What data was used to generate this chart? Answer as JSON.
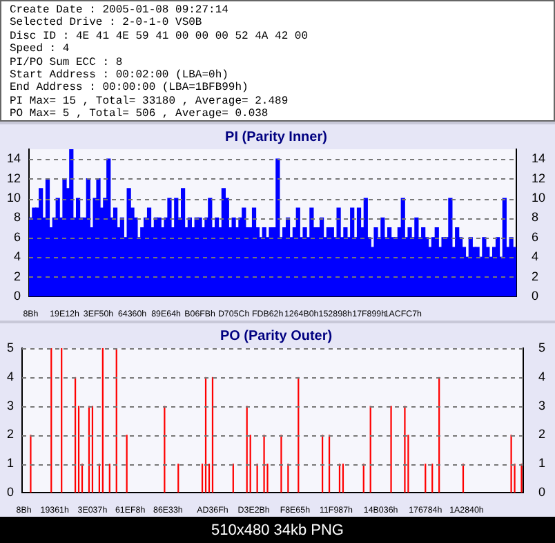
{
  "chart_data": [
    {
      "type": "other",
      "annotations": [
        "Create Date : 2005-01-08 09:27:14",
        "Selected Drive : 2-0-1-0 VS0B",
        "Disc ID : 4E 41 4E 59 41 00 00 00 52 4A 42 00",
        "Speed : 4",
        "PI/PO Sum ECC : 8",
        "Start Address : 00:02:00 (LBA=0h)",
        "End Address : 00:00:00 (LBA=1BFB99h)",
        "PI Max= 15 , Total= 33180 , Average= 2.489",
        "PO Max= 5 , Total= 506 , Average= 0.038"
      ]
    },
    {
      "type": "bar",
      "title": "PI (Parity Inner)",
      "color": "#0000ff",
      "ylim": [
        0,
        15
      ],
      "yticks": [
        0,
        2,
        4,
        6,
        8,
        10,
        12,
        14
      ],
      "y2lim": [
        0,
        15
      ],
      "y2ticks": [
        0,
        2,
        4,
        6,
        8,
        10,
        12,
        14
      ],
      "grid": "y",
      "legend": false,
      "categories": [
        "8Bh",
        null,
        null,
        null,
        null,
        null,
        null,
        null,
        null,
        null,
        "19E12h",
        null,
        null,
        null,
        null,
        null,
        null,
        null,
        null,
        null,
        "3EF50h",
        null,
        null,
        null,
        null,
        null,
        null,
        null,
        null,
        null,
        "64360h",
        null,
        null,
        null,
        null,
        null,
        null,
        null,
        null,
        null,
        "89E64h",
        null,
        null,
        null,
        null,
        null,
        null,
        null,
        null,
        null,
        "B06FBh",
        null,
        null,
        null,
        null,
        null,
        null,
        null,
        null,
        null,
        "D705Ch",
        null,
        null,
        null,
        null,
        null,
        null,
        null,
        null,
        null,
        "FDB62h",
        null,
        null,
        null,
        null,
        null,
        null,
        null,
        null,
        null,
        "1264B0h",
        null,
        null,
        null,
        null,
        null,
        null,
        null,
        null,
        null,
        "152898h",
        null,
        null,
        null,
        null,
        null,
        null,
        null,
        null,
        null,
        "17F899h",
        null,
        null,
        null,
        null,
        null,
        null,
        null,
        null,
        null,
        "1ACFC7h",
        null,
        null,
        null,
        null,
        null,
        null,
        null,
        null,
        null,
        null,
        null,
        null,
        null,
        null,
        null,
        null,
        null,
        null,
        null,
        null,
        null,
        null,
        null,
        null,
        null,
        null,
        null,
        null,
        null,
        null,
        null,
        null,
        null
      ],
      "values": [
        8,
        9,
        9,
        11,
        8,
        12,
        7,
        8,
        10,
        8,
        12,
        11,
        15,
        8,
        10,
        8,
        8,
        12,
        7,
        10,
        12,
        9,
        10,
        14,
        8,
        9,
        7,
        8,
        6,
        11,
        9,
        8,
        6,
        7,
        8,
        9,
        7,
        8,
        8,
        7,
        8,
        10,
        7,
        10,
        8,
        11,
        7,
        8,
        7,
        8,
        8,
        7,
        8,
        10,
        7,
        8,
        7,
        11,
        10,
        7,
        8,
        7,
        8,
        9,
        7,
        7,
        9,
        7,
        6,
        7,
        6,
        7,
        7,
        14,
        6,
        7,
        8,
        6,
        7,
        9,
        6,
        7,
        6,
        9,
        7,
        7,
        8,
        6,
        7,
        7,
        6,
        9,
        6,
        7,
        6,
        9,
        6,
        9,
        7,
        10,
        6,
        5,
        7,
        6,
        8,
        6,
        7,
        6,
        6,
        7,
        10,
        6,
        7,
        6,
        8,
        6,
        7,
        6,
        5,
        6,
        7,
        5,
        6,
        6,
        10,
        5,
        7,
        6,
        5,
        4,
        6,
        5,
        5,
        4,
        6,
        5,
        4,
        5,
        6,
        4,
        10,
        5,
        6,
        5
      ]
    },
    {
      "type": "bar",
      "title": "PO (Parity Outer)",
      "color": "#ff0000",
      "ylim": [
        0,
        5
      ],
      "yticks": [
        0,
        1,
        2,
        3,
        4,
        5
      ],
      "y2lim": [
        0,
        5
      ],
      "y2ticks": [
        0,
        1,
        2,
        3,
        4,
        5
      ],
      "grid": "y",
      "legend": false,
      "categories": [
        "8Bh",
        null,
        null,
        null,
        null,
        null,
        null,
        null,
        null,
        "19361h",
        null,
        null,
        null,
        null,
        null,
        null,
        null,
        null,
        null,
        null,
        "3E037h",
        null,
        null,
        null,
        null,
        null,
        null,
        null,
        null,
        null,
        null,
        "61EF8h",
        null,
        null,
        null,
        null,
        null,
        null,
        null,
        null,
        null,
        null,
        "86E33h",
        null,
        null,
        null,
        null,
        null,
        null,
        null,
        null,
        null,
        null,
        null,
        null,
        "AD36Fh",
        null,
        null,
        null,
        null,
        null,
        null,
        null,
        null,
        null,
        null,
        null,
        "D3E2Bh",
        null,
        null,
        null,
        null,
        null,
        null,
        null,
        null,
        null,
        null,
        null,
        "F8E65h",
        null,
        null,
        null,
        null,
        null,
        null,
        null,
        null,
        null,
        null,
        null,
        "11F987h",
        null,
        null,
        null,
        null,
        null,
        null,
        null,
        null,
        null,
        null,
        null,
        null,
        "14B036h",
        null,
        null,
        null,
        null,
        null,
        null,
        null,
        null,
        null,
        null,
        null,
        null,
        "176784h",
        null,
        null,
        null,
        null,
        null,
        null,
        null,
        null,
        null,
        null,
        null,
        "1A2840h",
        null,
        null,
        null,
        null,
        null,
        null,
        null,
        null,
        null,
        null,
        null,
        null,
        null,
        null,
        null,
        null
      ],
      "values": [
        0,
        0,
        2,
        0,
        0,
        0,
        0,
        0,
        5,
        0,
        0,
        5,
        0,
        0,
        0,
        4,
        3,
        1,
        0,
        3,
        3,
        0,
        1,
        5,
        0,
        1,
        0,
        5,
        0,
        0,
        2,
        0,
        0,
        0,
        0,
        0,
        0,
        0,
        0,
        0,
        0,
        3,
        0,
        0,
        0,
        1,
        0,
        0,
        0,
        0,
        0,
        0,
        1,
        4,
        1,
        4,
        0,
        0,
        0,
        0,
        0,
        1,
        0,
        0,
        0,
        3,
        2,
        0,
        1,
        0,
        2,
        1,
        0,
        0,
        0,
        2,
        0,
        1,
        0,
        0,
        4,
        0,
        0,
        0,
        0,
        0,
        0,
        2,
        0,
        2,
        0,
        0,
        1,
        1,
        0,
        0,
        0,
        0,
        0,
        1,
        0,
        3,
        0,
        0,
        0,
        0,
        0,
        3,
        0,
        0,
        0,
        3,
        2,
        0,
        0,
        0,
        0,
        1,
        0,
        1,
        0,
        4,
        0,
        0,
        0,
        0,
        0,
        0,
        1,
        0,
        0,
        0,
        0,
        0,
        0,
        0,
        0,
        0,
        0,
        0,
        0,
        0,
        2,
        1,
        0,
        1
      ],
      "annotations": [
        "510x480 34kb PNG"
      ]
    }
  ]
}
